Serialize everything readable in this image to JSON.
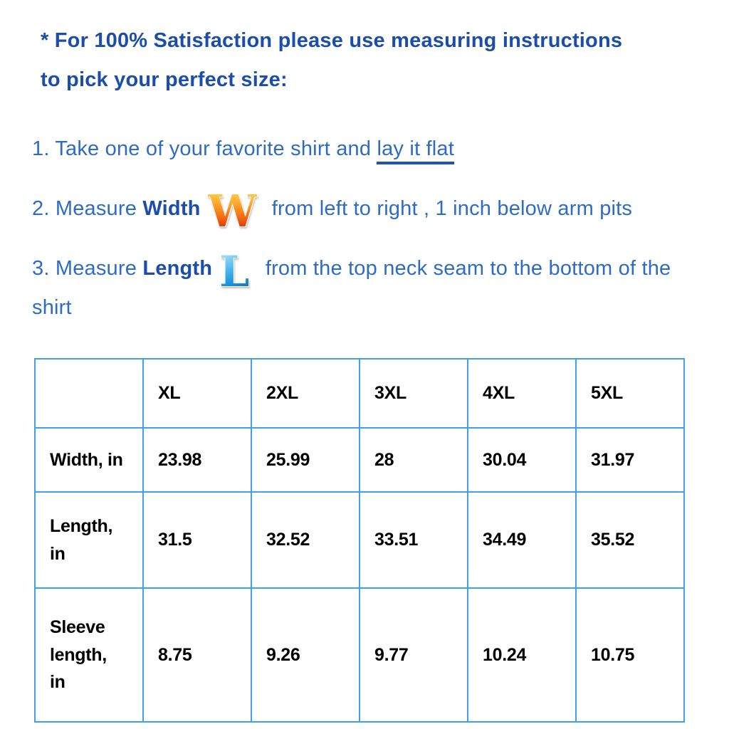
{
  "header": {
    "text": "* For 100% Satisfaction please use measuring instructions\nto pick your perfect size:"
  },
  "instructions": {
    "step1": {
      "prefix": "1. Take one of your favorite shirt and ",
      "underlined": "lay it flat"
    },
    "step2": {
      "prefix": "2. Measure ",
      "keyword": "Width",
      "icon_letter": "W",
      "suffix": " from left to right , 1 inch below arm pits"
    },
    "step3": {
      "prefix": "3. Measure ",
      "keyword": "Length",
      "icon_letter": "L",
      "suffix": " from the top neck seam to the bottom of the shirt"
    }
  },
  "size_table": {
    "columns": [
      "",
      "XL",
      "2XL",
      "3XL",
      "4XL",
      "5XL"
    ],
    "rows": [
      {
        "label": "Width, in",
        "values": [
          "23.98",
          "25.99",
          "28",
          "30.04",
          "31.97"
        ]
      },
      {
        "label": "Length,\nin",
        "values": [
          "31.5",
          "32.52",
          "33.51",
          "34.49",
          "35.52"
        ]
      },
      {
        "label": "Sleeve\nlength,\nin",
        "values": [
          "8.75",
          "9.26",
          "9.77",
          "10.24",
          "10.75"
        ]
      }
    ]
  },
  "colors": {
    "heading_blue": "#1b4da9",
    "body_blue": "#2e6cc4",
    "underline_blue": "#1d55b0",
    "table_border_blue": "#3fa0f2",
    "table_text": "#000000",
    "w_icon_top": "#ffd94f",
    "w_icon_bottom": "#cc1c09",
    "l_icon_top": "#bfeafd",
    "l_icon_bottom": "#0d63b0"
  }
}
